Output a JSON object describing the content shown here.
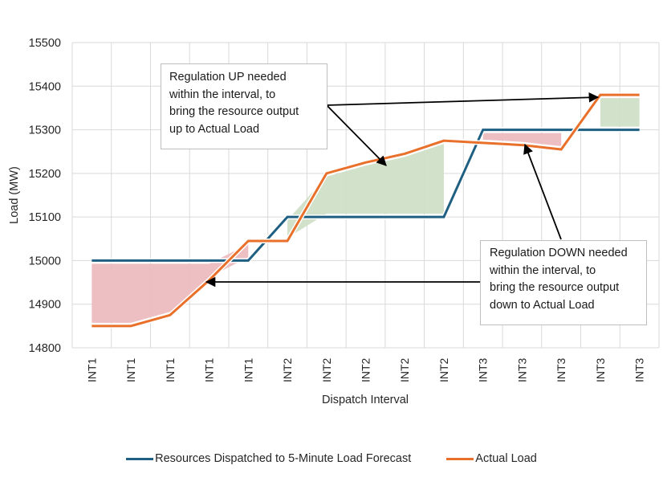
{
  "chart_data": {
    "type": "line",
    "title": "",
    "xlabel": "Dispatch Interval",
    "ylabel": "Load (MW)",
    "ylim": [
      14800,
      15500
    ],
    "yticks": [
      14800,
      14900,
      15000,
      15100,
      15200,
      15300,
      15400,
      15500
    ],
    "grid": true,
    "legend_position": "bottom",
    "categories": [
      "INT1",
      "INT1",
      "INT1",
      "INT1",
      "INT1",
      "INT2",
      "INT2",
      "INT2",
      "INT2",
      "INT2",
      "INT3",
      "INT3",
      "INT3",
      "INT3",
      "INT3"
    ],
    "series": [
      {
        "name": "Resources Dispatched to 5-Minute Load Forecast",
        "color": "#1f5f82",
        "values": [
          15000,
          15000,
          15000,
          15000,
          15000,
          15100,
          15100,
          15100,
          15100,
          15100,
          15300,
          15300,
          15300,
          15300,
          15300
        ]
      },
      {
        "name": "Actual Load",
        "color": "#e8702a",
        "values": [
          14850,
          14850,
          14875,
          14955,
          15045,
          15045,
          15200,
          15225,
          15245,
          15275,
          15270,
          15265,
          15255,
          15380,
          15380
        ]
      }
    ],
    "shaded_regions": [
      {
        "name": "Regulation DOWN region (interval 1)",
        "color": "#ecbcbf",
        "from_index": 0,
        "to_index": 4,
        "kind": "down"
      },
      {
        "name": "Regulation UP region (interval 2)",
        "color": "#cfdfc7",
        "from_index": 5,
        "to_index": 9,
        "kind": "up"
      },
      {
        "name": "Regulation DOWN region (interval 3)",
        "color": "#ecbcbf",
        "from_index": 10,
        "to_index": 12,
        "kind": "down"
      },
      {
        "name": "Regulation UP region (interval 3)",
        "color": "#cfdfc7",
        "from_index": 13,
        "to_index": 14,
        "kind": "up"
      }
    ],
    "annotations": [
      {
        "name": "regulation-up",
        "text": "Regulation UP needed\nwithin the interval, to\nbring the resource output\nup to Actual Load",
        "points_to": [
          "Regulation UP region (interval 2)",
          "Regulation UP region (interval 3)"
        ]
      },
      {
        "name": "regulation-down",
        "text": "Regulation DOWN needed\nwithin the interval, to\nbring the resource output\ndown to Actual Load",
        "points_to": [
          "Regulation DOWN region (interval 1)",
          "Regulation DOWN region (interval 3)"
        ]
      }
    ]
  }
}
